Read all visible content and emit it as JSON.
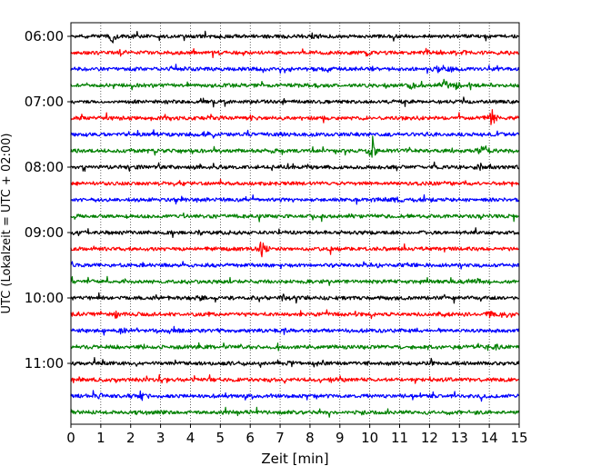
{
  "chart_data": {
    "type": "line",
    "title": "",
    "xlabel": "Zeit  [min]",
    "ylabel": "UTC (Lokalzeit = UTC + 02:00)",
    "xlim": [
      0,
      15
    ],
    "x_ticks": [
      "0",
      "1",
      "2",
      "3",
      "4",
      "5",
      "6",
      "7",
      "8",
      "9",
      "10",
      "11",
      "12",
      "13",
      "14",
      "15"
    ],
    "y_tick_labels": [
      "06:00",
      "07:00",
      "08:00",
      "09:00",
      "10:00",
      "11:00"
    ],
    "grid": "vertical dotted lines at each minute",
    "trace_colors": [
      "#000000",
      "#ff0000",
      "#0000ff",
      "#008000"
    ],
    "traces": [
      {
        "start": "06:00",
        "color": "#000000",
        "events": [
          {
            "t": 1.4,
            "amp": 9
          },
          {
            "t": 8.1,
            "amp": 3
          }
        ]
      },
      {
        "start": "06:15",
        "color": "#ff0000",
        "events": [
          {
            "t": 13.1,
            "amp": 2
          }
        ]
      },
      {
        "start": "06:30",
        "color": "#0000ff",
        "events": [
          {
            "t": 12.3,
            "amp": 4
          },
          {
            "t": 12.7,
            "amp": 3
          }
        ]
      },
      {
        "start": "06:45",
        "color": "#008000",
        "events": [
          {
            "t": 11.4,
            "amp": 5
          },
          {
            "t": 12.5,
            "amp": 9
          },
          {
            "t": 12.9,
            "amp": 6
          }
        ]
      },
      {
        "start": "07:00",
        "color": "#000000",
        "events": []
      },
      {
        "start": "07:15",
        "color": "#ff0000",
        "events": [
          {
            "t": 14.1,
            "amp": 10
          },
          {
            "t": 6.0,
            "amp": 2
          }
        ]
      },
      {
        "start": "07:30",
        "color": "#0000ff",
        "events": [
          {
            "t": 4.6,
            "amp": 2
          }
        ]
      },
      {
        "start": "07:45",
        "color": "#008000",
        "events": [
          {
            "t": 10.1,
            "amp": 16
          },
          {
            "t": 13.8,
            "amp": 12
          }
        ]
      },
      {
        "start": "08:00",
        "color": "#000000",
        "events": [
          {
            "t": 13.7,
            "amp": 4
          }
        ]
      },
      {
        "start": "08:15",
        "color": "#ff0000",
        "events": []
      },
      {
        "start": "08:30",
        "color": "#0000ff",
        "events": [
          {
            "t": 10.9,
            "amp": 3
          }
        ]
      },
      {
        "start": "08:45",
        "color": "#008000",
        "events": [
          {
            "t": 9.3,
            "amp": 2
          }
        ]
      },
      {
        "start": "09:00",
        "color": "#000000",
        "events": [
          {
            "t": 4.3,
            "amp": 3
          }
        ]
      },
      {
        "start": "09:15",
        "color": "#ff0000",
        "events": [
          {
            "t": 6.4,
            "amp": 14
          }
        ]
      },
      {
        "start": "09:30",
        "color": "#0000ff",
        "events": []
      },
      {
        "start": "09:45",
        "color": "#008000",
        "events": [
          {
            "t": 13.6,
            "amp": 3
          }
        ]
      },
      {
        "start": "10:00",
        "color": "#000000",
        "events": [
          {
            "t": 7.1,
            "amp": 4
          },
          {
            "t": 4.3,
            "amp": 2
          }
        ]
      },
      {
        "start": "10:15",
        "color": "#ff0000",
        "events": [
          {
            "t": 14.0,
            "amp": 4
          },
          {
            "t": 1.5,
            "amp": 3
          }
        ]
      },
      {
        "start": "10:30",
        "color": "#0000ff",
        "events": [
          {
            "t": 1.7,
            "amp": 4
          }
        ]
      },
      {
        "start": "10:45",
        "color": "#008000",
        "events": [
          {
            "t": 14.2,
            "amp": 3
          }
        ]
      },
      {
        "start": "11:00",
        "color": "#000000",
        "events": [
          {
            "t": 7.4,
            "amp": 4
          }
        ]
      },
      {
        "start": "11:15",
        "color": "#ff0000",
        "events": []
      },
      {
        "start": "11:30",
        "color": "#0000ff",
        "events": [
          {
            "t": 2.4,
            "amp": 5
          },
          {
            "t": 1.0,
            "amp": 3
          }
        ]
      },
      {
        "start": "11:45",
        "color": "#008000",
        "events": []
      }
    ]
  }
}
